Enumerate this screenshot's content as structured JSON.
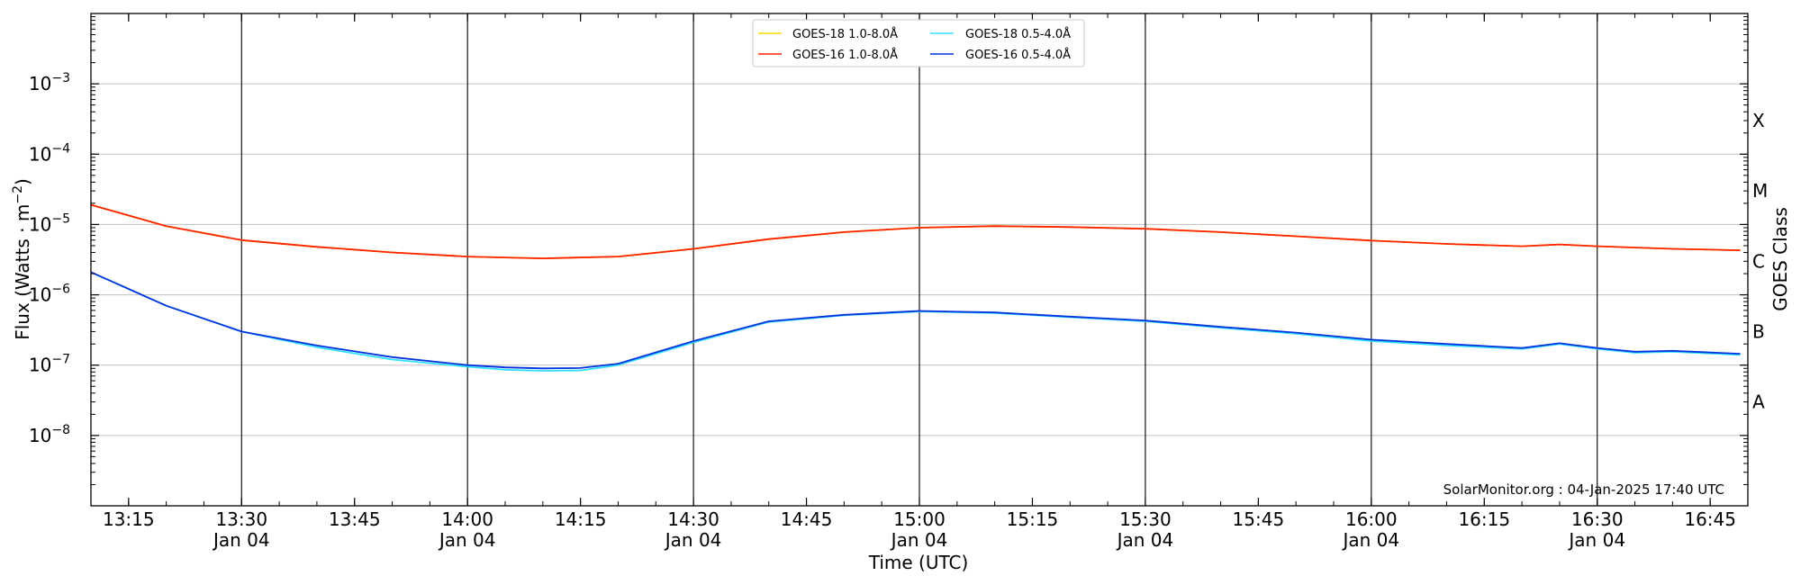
{
  "chart_data": {
    "type": "line",
    "xlabel": "Time (UTC)",
    "ylabel_main": "Flux (Watts · m",
    "ylabel_sup": "−2",
    "ylabel_end": ")",
    "ylabel_right": "GOES Class",
    "yscale": "log",
    "xlim": [
      "13:10",
      "16:50"
    ],
    "ylim": [
      1e-09,
      0.01
    ],
    "grid": true,
    "legend_position": "top-center",
    "y_ticks": [
      {
        "mant": "10",
        "exp": "−8",
        "value": 1e-08
      },
      {
        "mant": "10",
        "exp": "−7",
        "value": 1e-07
      },
      {
        "mant": "10",
        "exp": "−6",
        "value": 1e-06
      },
      {
        "mant": "10",
        "exp": "−5",
        "value": 1e-05
      },
      {
        "mant": "10",
        "exp": "−4",
        "value": 0.0001
      },
      {
        "mant": "10",
        "exp": "−3",
        "value": 0.001
      }
    ],
    "goes_classes": [
      {
        "label": "A",
        "value": 3e-08
      },
      {
        "label": "B",
        "value": 3e-07
      },
      {
        "label": "C",
        "value": 3e-06
      },
      {
        "label": "M",
        "value": 3e-05
      },
      {
        "label": "X",
        "value": 0.0003
      }
    ],
    "x_ticks": [
      {
        "time": "13:15",
        "label": "13:15",
        "date": ""
      },
      {
        "time": "13:30",
        "label": "13:30",
        "date": "Jan 04"
      },
      {
        "time": "13:45",
        "label": "13:45",
        "date": ""
      },
      {
        "time": "14:00",
        "label": "14:00",
        "date": "Jan 04"
      },
      {
        "time": "14:15",
        "label": "14:15",
        "date": ""
      },
      {
        "time": "14:30",
        "label": "14:30",
        "date": "Jan 04"
      },
      {
        "time": "14:45",
        "label": "14:45",
        "date": ""
      },
      {
        "time": "15:00",
        "label": "15:00",
        "date": "Jan 04"
      },
      {
        "time": "15:15",
        "label": "15:15",
        "date": ""
      },
      {
        "time": "15:30",
        "label": "15:30",
        "date": "Jan 04"
      },
      {
        "time": "15:45",
        "label": "15:45",
        "date": ""
      },
      {
        "time": "16:00",
        "label": "16:00",
        "date": "Jan 04"
      },
      {
        "time": "16:15",
        "label": "16:15",
        "date": ""
      },
      {
        "time": "16:30",
        "label": "16:30",
        "date": "Jan 04"
      },
      {
        "time": "16:45",
        "label": "16:45",
        "date": ""
      }
    ],
    "vlines": [
      "13:30",
      "14:00",
      "14:30",
      "15:00",
      "15:30",
      "16:00",
      "16:30"
    ],
    "annotation": "SolarMonitor.org : 04-Jan-2025 17:40 UTC",
    "series": [
      {
        "name": "GOES-18 1.0-8.0Å",
        "color": "#ffd700",
        "x": [
          "13:10",
          "13:20",
          "13:30",
          "13:40",
          "13:50",
          "14:00",
          "14:10",
          "14:20",
          "14:30",
          "14:40",
          "14:50",
          "15:00",
          "15:10",
          "15:20",
          "15:30",
          "15:40",
          "15:50",
          "16:00",
          "16:10",
          "16:20",
          "16:25",
          "16:30",
          "16:40",
          "16:49"
        ],
        "y": [
          1.9e-05,
          9.5e-06,
          6e-06,
          4.8e-06,
          4e-06,
          3.5e-06,
          3.3e-06,
          3.5e-06,
          4.5e-06,
          6.2e-06,
          7.8e-06,
          9e-06,
          9.5e-06,
          9.2e-06,
          8.7e-06,
          7.8e-06,
          6.8e-06,
          5.9e-06,
          5.3e-06,
          4.9e-06,
          5.2e-06,
          4.9e-06,
          4.5e-06,
          4.3e-06
        ]
      },
      {
        "name": "GOES-16 1.0-8.0Å",
        "color": "#ff2200",
        "x": [
          "13:10",
          "13:20",
          "13:30",
          "13:40",
          "13:50",
          "14:00",
          "14:10",
          "14:20",
          "14:30",
          "14:40",
          "14:50",
          "15:00",
          "15:10",
          "15:20",
          "15:30",
          "15:40",
          "15:50",
          "16:00",
          "16:10",
          "16:20",
          "16:25",
          "16:30",
          "16:40",
          "16:49"
        ],
        "y": [
          1.9e-05,
          9.5e-06,
          6e-06,
          4.8e-06,
          4e-06,
          3.5e-06,
          3.3e-06,
          3.5e-06,
          4.5e-06,
          6.2e-06,
          7.8e-06,
          9e-06,
          9.5e-06,
          9.2e-06,
          8.7e-06,
          7.8e-06,
          6.8e-06,
          5.9e-06,
          5.3e-06,
          4.9e-06,
          5.2e-06,
          4.9e-06,
          4.5e-06,
          4.3e-06
        ]
      },
      {
        "name": "GOES-18 0.5-4.0Å",
        "color": "#33dfff",
        "x": [
          "13:10",
          "13:20",
          "13:30",
          "13:40",
          "13:50",
          "14:00",
          "14:05",
          "14:10",
          "14:15",
          "14:20",
          "14:30",
          "14:40",
          "14:50",
          "15:00",
          "15:10",
          "15:20",
          "15:30",
          "15:40",
          "15:50",
          "16:00",
          "16:10",
          "16:20",
          "16:25",
          "16:30",
          "16:35",
          "16:40",
          "16:49"
        ],
        "y": [
          2.1e-06,
          7e-07,
          3e-07,
          1.8e-07,
          1.2e-07,
          9.5e-08,
          8.6e-08,
          8.3e-08,
          8.4e-08,
          1e-07,
          2.1e-07,
          4.1e-07,
          5.1e-07,
          5.8e-07,
          5.5e-07,
          4.8e-07,
          4.2e-07,
          3.4e-07,
          2.8e-07,
          2.2e-07,
          1.9e-07,
          1.7e-07,
          2e-07,
          1.7e-07,
          1.5e-07,
          1.55e-07,
          1.4e-07
        ]
      },
      {
        "name": "GOES-16 0.5-4.0Å",
        "color": "#0033dd",
        "x": [
          "13:10",
          "13:20",
          "13:30",
          "13:40",
          "13:50",
          "14:00",
          "14:05",
          "14:10",
          "14:15",
          "14:20",
          "14:30",
          "14:40",
          "14:50",
          "15:00",
          "15:10",
          "15:20",
          "15:30",
          "15:40",
          "15:50",
          "16:00",
          "16:10",
          "16:20",
          "16:25",
          "16:30",
          "16:35",
          "16:40",
          "16:49"
        ],
        "y": [
          2.1e-06,
          7e-07,
          3e-07,
          1.9e-07,
          1.3e-07,
          1e-07,
          9.3e-08,
          9e-08,
          9.1e-08,
          1.05e-07,
          2.2e-07,
          4.2e-07,
          5.2e-07,
          5.9e-07,
          5.6e-07,
          4.9e-07,
          4.3e-07,
          3.5e-07,
          2.9e-07,
          2.3e-07,
          2e-07,
          1.75e-07,
          2.05e-07,
          1.75e-07,
          1.55e-07,
          1.6e-07,
          1.45e-07
        ]
      }
    ]
  }
}
